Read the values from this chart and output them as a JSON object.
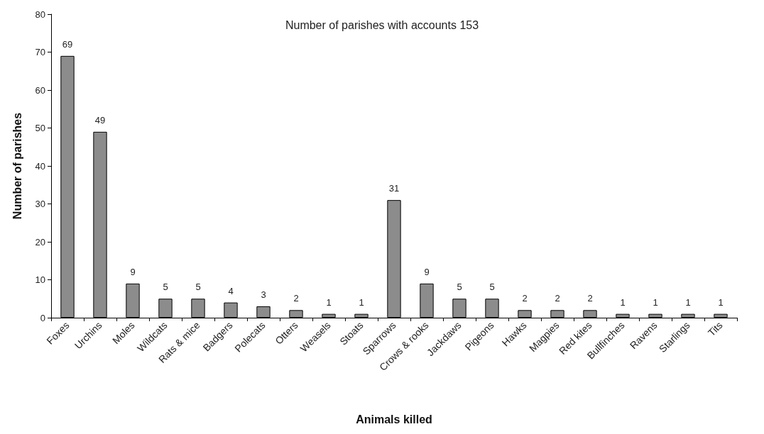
{
  "chart_data": {
    "type": "bar",
    "title": "Number of parishes with accounts 153",
    "xlabel": "Animals killed",
    "ylabel": "Number of parishes",
    "categories": [
      "Foxes",
      "Urchins",
      "Moles",
      "Wildcats",
      "Rats & mice",
      "Badgers",
      "Polecats",
      "Otters",
      "Weasels",
      "Stoats",
      "Sparrows",
      "Crows & rooks",
      "Jackdaws",
      "Pigeons",
      "Hawks",
      "Magpies",
      "Red kites",
      "Bullfinches",
      "Ravens",
      "Starlings",
      "Tits"
    ],
    "values": [
      69,
      49,
      9,
      5,
      5,
      4,
      3,
      2,
      1,
      1,
      31,
      9,
      5,
      5,
      2,
      2,
      2,
      1,
      1,
      1,
      1
    ],
    "color": "#8c8c8c",
    "ylim": [
      0,
      80
    ],
    "yticks": [
      0,
      10,
      20,
      30,
      40,
      50,
      60,
      70,
      80
    ],
    "grid": false,
    "data_labels": true
  }
}
